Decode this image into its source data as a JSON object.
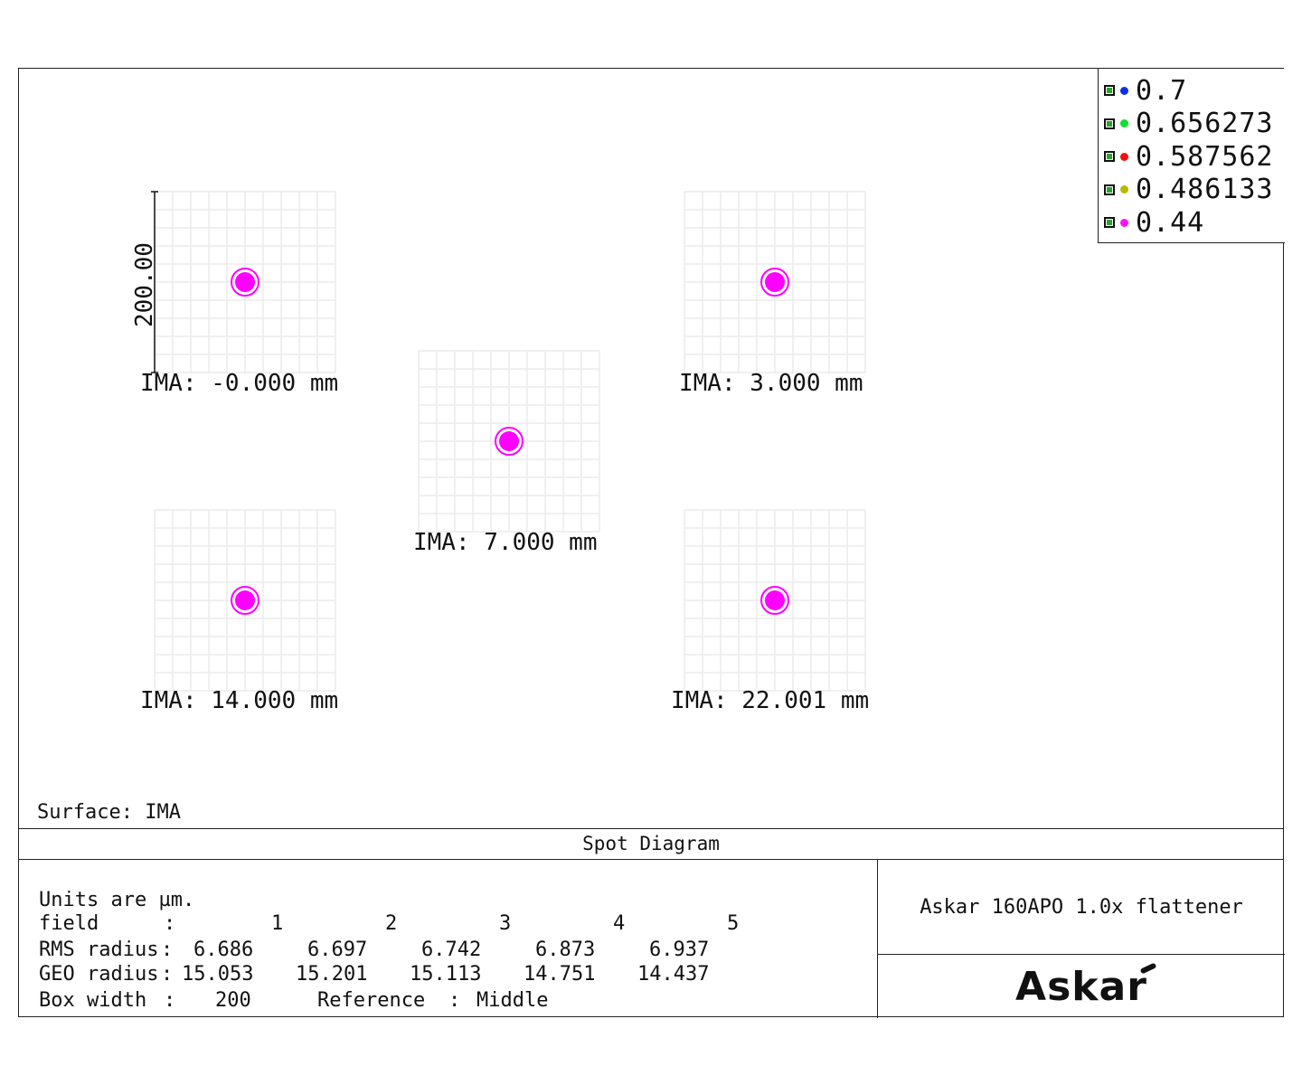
{
  "legend": {
    "items": [
      {
        "label": "0.7",
        "color": "#1030e0"
      },
      {
        "label": "0.656273",
        "color": "#10e030"
      },
      {
        "label": "0.587562",
        "color": "#f01010"
      },
      {
        "label": "0.486133",
        "color": "#b8b800"
      },
      {
        "label": "0.44",
        "color": "#ff10ff"
      }
    ]
  },
  "scale_label": "200.00",
  "spot_color": "#ff00ff",
  "fields": [
    {
      "label": "IMA: -0.000 mm",
      "spot_x": 0,
      "spot_y": 0
    },
    {
      "label": "IMA: 3.000 mm",
      "spot_x": 0,
      "spot_y": 0
    },
    {
      "label": "IMA: 7.000 mm",
      "spot_x": 0,
      "spot_y": 0
    },
    {
      "label": "IMA: 14.000 mm",
      "spot_x": 0,
      "spot_y": 0
    },
    {
      "label": "IMA: 22.001 mm",
      "spot_x": 0,
      "spot_y": 0
    }
  ],
  "surface": "Surface: IMA",
  "diagram_title": "Spot Diagram",
  "info": {
    "units": "Units are µm.",
    "field_label": "field",
    "rms_label": "RMS radius",
    "geo_label": "GEO radius",
    "colon": ":",
    "field_numbers": [
      "1",
      "2",
      "3",
      "4",
      "5"
    ],
    "rms_values": [
      "6.686",
      "6.697",
      "6.742",
      "6.873",
      "6.937"
    ],
    "geo_values": [
      "15.053",
      "15.201",
      "15.113",
      "14.751",
      "14.437"
    ],
    "box_width_label": "Box width",
    "box_width_value": "200",
    "reference_label": "Reference",
    "reference_value": "Middle"
  },
  "lens_name": "Askar 160APO 1.0x flattener",
  "logo_text": "Askar"
}
